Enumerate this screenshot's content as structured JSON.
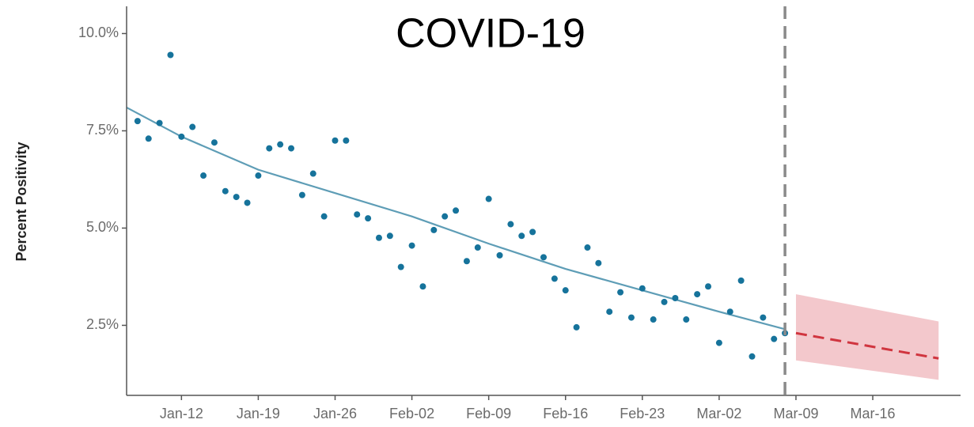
{
  "chart_data": {
    "type": "scatter",
    "title": "COVID-19",
    "y_label": "Percent Positivity",
    "xlim": [
      "Jan-07",
      "Mar-24"
    ],
    "ylim": [
      0.7,
      10.7
    ],
    "yticks": [
      {
        "value": 2.5,
        "label": "2.5%"
      },
      {
        "value": 5,
        "label": "5.0%"
      },
      {
        "value": 7.5,
        "label": "7.5%"
      },
      {
        "value": 10,
        "label": "10.0%"
      }
    ],
    "xticks": [
      "Jan-12",
      "Jan-19",
      "Jan-26",
      "Feb-02",
      "Feb-09",
      "Feb-16",
      "Feb-23",
      "Mar-02",
      "Mar-09",
      "Mar-16"
    ],
    "grid": false,
    "series": [
      {
        "type": "scatter",
        "color": "#16739b",
        "x": [
          "Jan-08",
          "Jan-09",
          "Jan-10",
          "Jan-11",
          "Jan-12",
          "Jan-13",
          "Jan-14",
          "Jan-15",
          "Jan-16",
          "Jan-17",
          "Jan-18",
          "Jan-19",
          "Jan-20",
          "Jan-21",
          "Jan-22",
          "Jan-23",
          "Jan-24",
          "Jan-25",
          "Jan-26",
          "Jan-27",
          "Jan-28",
          "Jan-29",
          "Jan-30",
          "Jan-31",
          "Feb-01",
          "Feb-02",
          "Feb-03",
          "Feb-04",
          "Feb-05",
          "Feb-06",
          "Feb-07",
          "Feb-08",
          "Feb-09",
          "Feb-10",
          "Feb-11",
          "Feb-12",
          "Feb-13",
          "Feb-14",
          "Feb-15",
          "Feb-16",
          "Feb-17",
          "Feb-18",
          "Feb-19",
          "Feb-20",
          "Feb-21",
          "Feb-22",
          "Feb-23",
          "Feb-24",
          "Feb-25",
          "Feb-26",
          "Feb-27",
          "Feb-28",
          "Mar-01",
          "Mar-02",
          "Mar-03",
          "Mar-04",
          "Mar-05",
          "Mar-06",
          "Mar-07",
          "Mar-08"
        ],
        "values": [
          7.75,
          7.3,
          7.7,
          9.45,
          7.35,
          7.6,
          6.35,
          7.2,
          5.95,
          5.8,
          5.65,
          6.35,
          7.05,
          7.15,
          7.05,
          5.85,
          6.4,
          5.3,
          7.25,
          7.25,
          5.35,
          5.25,
          4.75,
          4.8,
          4.0,
          4.55,
          3.5,
          4.95,
          5.3,
          5.45,
          4.15,
          4.5,
          5.75,
          4.3,
          5.1,
          4.8,
          4.9,
          4.25,
          3.7,
          3.4,
          2.45,
          4.5,
          4.1,
          2.85,
          3.35,
          2.7,
          3.45,
          2.65,
          3.1,
          3.2,
          2.65,
          3.3,
          3.5,
          2.05,
          2.85,
          3.65,
          1.7,
          2.7,
          2.15,
          2.3
        ]
      },
      {
        "type": "line",
        "color": "#5e9db6",
        "dashed": false,
        "x": [
          "Jan-07",
          "Jan-12",
          "Jan-19",
          "Jan-26",
          "Feb-02",
          "Feb-09",
          "Feb-16",
          "Feb-23",
          "Mar-02",
          "Mar-08"
        ],
        "values": [
          8.1,
          7.35,
          6.5,
          5.9,
          5.3,
          4.6,
          3.95,
          3.4,
          2.85,
          2.4
        ]
      },
      {
        "type": "band",
        "color": "#f3c8cc",
        "x": [
          "Mar-09",
          "Mar-22"
        ],
        "upper": [
          3.3,
          2.6
        ],
        "lower": [
          1.6,
          1.1
        ]
      },
      {
        "type": "line",
        "color": "#d0353f",
        "dashed": true,
        "x": [
          "Mar-09",
          "Mar-22"
        ],
        "values": [
          2.3,
          1.65
        ]
      }
    ],
    "vline": {
      "x": "Mar-08",
      "color": "#8a8a8a"
    }
  }
}
